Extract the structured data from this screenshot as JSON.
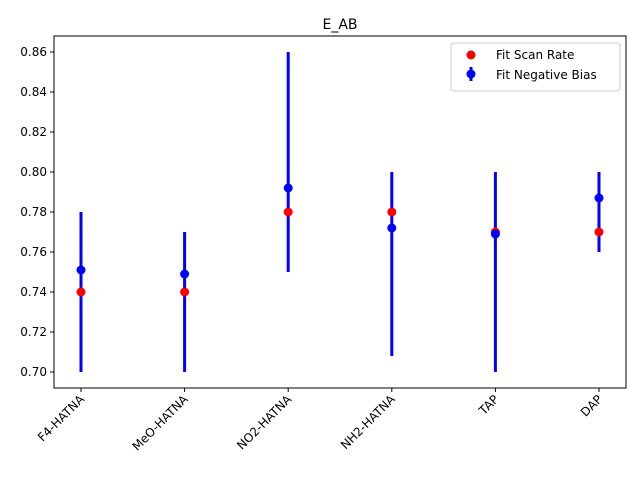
{
  "chart_data": {
    "type": "scatter",
    "title": "E_AB",
    "xlabel": "",
    "ylabel": "",
    "categories": [
      "F4-HATNA",
      "MeO-HATNA",
      "NO2-HATNA",
      "NH2-HATNA",
      "TAP",
      "DAP"
    ],
    "ylim": [
      0.692,
      0.868
    ],
    "yticks": [
      0.7,
      0.72,
      0.74,
      0.76,
      0.78,
      0.8,
      0.82,
      0.84,
      0.86
    ],
    "ytick_labels": [
      "0.70",
      "0.72",
      "0.74",
      "0.76",
      "0.78",
      "0.80",
      "0.82",
      "0.84",
      "0.86"
    ],
    "grid": false,
    "legend_position": "top-right",
    "series": [
      {
        "name": "Fit Scan Rate",
        "kind": "scatter",
        "color": "#ff0000",
        "values": [
          0.74,
          0.74,
          0.78,
          0.78,
          0.77,
          0.77
        ]
      },
      {
        "name": "Fit Negative Bias",
        "kind": "errorbar",
        "color": "#0000ff",
        "values": [
          0.751,
          0.749,
          0.792,
          0.772,
          0.769,
          0.787
        ],
        "lower": [
          0.7,
          0.7,
          0.75,
          0.708,
          0.7,
          0.76
        ],
        "upper": [
          0.78,
          0.77,
          0.86,
          0.8,
          0.8,
          0.8
        ]
      }
    ]
  }
}
